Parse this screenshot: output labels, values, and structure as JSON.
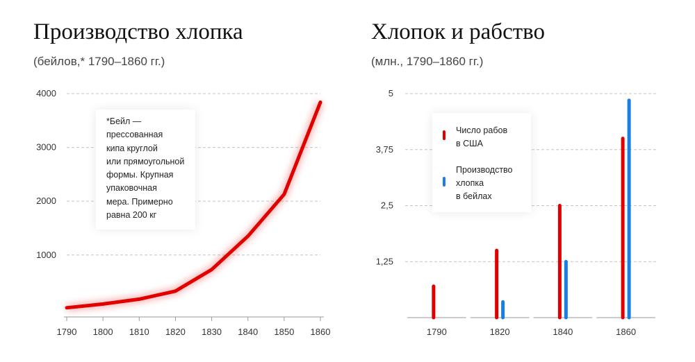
{
  "left_panel": {
    "title": "Производство хлопка",
    "subtitle": "(бейлов,* 1790–1860 гг.)",
    "note_lines": [
      "*Бейл —",
      "прессованная",
      "кипа круглой",
      "или прямоугольной",
      "формы. Крупная",
      "упаковочная",
      "мера. Примерно",
      "равна 200 кг"
    ]
  },
  "right_panel": {
    "title": "Хлопок и рабство",
    "subtitle": "(млн., 1790–1860 гг.)"
  },
  "colors": {
    "slaves": "#e00000",
    "cotton": "#1a7fe0",
    "line": "#e00000"
  },
  "chart_data": [
    {
      "type": "line",
      "x": [
        1790,
        1800,
        1810,
        1820,
        1830,
        1840,
        1850,
        1860
      ],
      "series": [
        {
          "values": [
            20,
            90,
            180,
            330,
            730,
            1350,
            2130,
            3840
          ]
        }
      ],
      "xticks": [
        "1790",
        "1800",
        "1810",
        "1820",
        "1830",
        "1840",
        "1850",
        "1860"
      ],
      "yticks": [
        "1000",
        "2000",
        "3000",
        "4000"
      ],
      "ylim": [
        -150,
        4000
      ],
      "grid": true
    },
    {
      "type": "bar",
      "categories": [
        "1790",
        "1820",
        "1840",
        "1860"
      ],
      "yticks": [
        "1,25",
        "2,5",
        "3,75",
        "5"
      ],
      "ylim": [
        0,
        5
      ],
      "grid": true,
      "legend_position": "top-left",
      "series": [
        {
          "name_lines": [
            "Число рабов",
            "в США"
          ],
          "values": [
            0.7,
            1.5,
            2.5,
            4.0
          ]
        },
        {
          "name_lines": [
            "Производство",
            "хлопка",
            "в бейлах"
          ],
          "values": [
            null,
            0.35,
            1.25,
            4.85
          ]
        }
      ]
    }
  ]
}
